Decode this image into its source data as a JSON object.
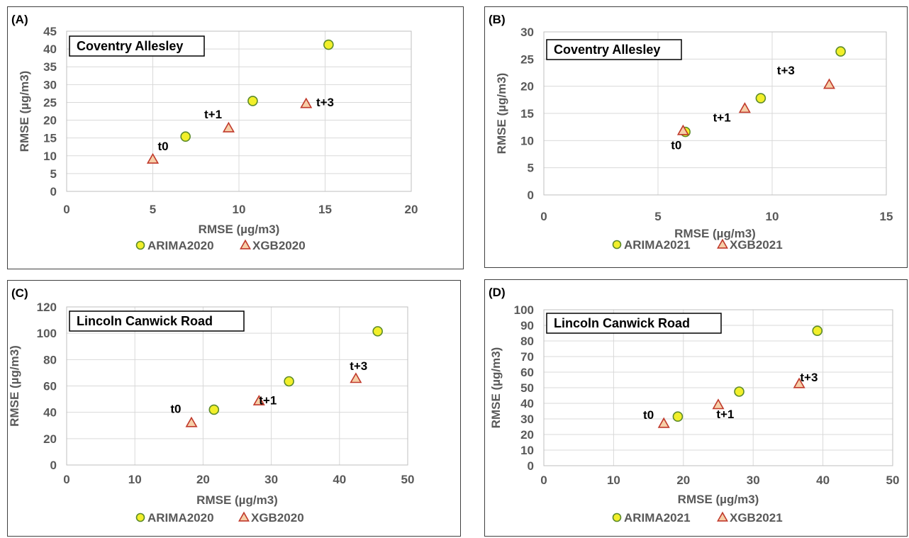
{
  "colors": {
    "arima_fill": "#f2ef2a",
    "arima_stroke": "#5b8a2a",
    "xgb_fill": "#f6cfa8",
    "xgb_stroke": "#c0392b",
    "grid": "#d9d9d9",
    "text": "#595959"
  },
  "chart_data": [
    {
      "type": "scatter",
      "panel_label": "(A)",
      "station": "Coventry Allesley",
      "xlabel": "RMSE (µg/m3)",
      "ylabel": "RMSE (µg/m3)",
      "xlim": [
        0,
        20
      ],
      "ylim": [
        0,
        45
      ],
      "xticks": [
        0,
        5,
        10,
        15,
        20
      ],
      "yticks": [
        0,
        5,
        10,
        15,
        20,
        25,
        30,
        35,
        40,
        45
      ],
      "grid": true,
      "legend_position": "bottom",
      "series": [
        {
          "name": "ARIMA2020",
          "marker": "circle",
          "points": [
            [
              6.9,
              15.4
            ],
            [
              10.8,
              25.4
            ],
            [
              15.2,
              41.2
            ]
          ]
        },
        {
          "name": "XGB2020",
          "marker": "triangle",
          "points": [
            [
              5.0,
              9.0
            ],
            [
              9.4,
              17.8
            ],
            [
              13.9,
              24.6
            ]
          ]
        }
      ],
      "annotations": [
        {
          "text": "t0",
          "x": 5.6,
          "y": 11.5
        },
        {
          "text": "t+1",
          "x": 8.5,
          "y": 20.5
        },
        {
          "text": "t+3",
          "x": 15.0,
          "y": 23.9
        }
      ]
    },
    {
      "type": "scatter",
      "panel_label": "(B)",
      "station": "Coventry Allesley",
      "xlabel": "RMSE (µg/m3)",
      "ylabel": "RMSE (µg/m3)",
      "xlim": [
        0,
        15
      ],
      "ylim": [
        0,
        30
      ],
      "xticks": [
        0,
        5,
        10,
        15
      ],
      "yticks": [
        0,
        5,
        10,
        15,
        20,
        25,
        30
      ],
      "grid": true,
      "legend_position": "bottom",
      "series": [
        {
          "name": "ARIMA2021",
          "marker": "circle",
          "points": [
            [
              6.2,
              11.6
            ],
            [
              9.5,
              17.8
            ],
            [
              13.0,
              26.4
            ]
          ]
        },
        {
          "name": "XGB2021",
          "marker": "triangle",
          "points": [
            [
              6.1,
              11.8
            ],
            [
              8.8,
              15.9
            ],
            [
              12.5,
              20.3
            ]
          ]
        }
      ],
      "annotations": [
        {
          "text": "t0",
          "x": 5.8,
          "y": 8.4
        },
        {
          "text": "t+1",
          "x": 7.8,
          "y": 13.5
        },
        {
          "text": "t+3",
          "x": 10.6,
          "y": 22.2
        }
      ]
    },
    {
      "type": "scatter",
      "panel_label": "(C)",
      "station": "Lincoln Canwick Road",
      "xlabel": "RMSE (µg/m3)",
      "ylabel": "RMSE (µg/m3)",
      "xlim": [
        0,
        50
      ],
      "ylim": [
        0,
        120
      ],
      "xticks": [
        0,
        10,
        20,
        30,
        40,
        50
      ],
      "yticks": [
        0,
        20,
        40,
        60,
        80,
        100,
        120
      ],
      "grid": true,
      "legend_position": "bottom",
      "series": [
        {
          "name": "ARIMA2020",
          "marker": "circle",
          "points": [
            [
              21.6,
              42.0
            ],
            [
              32.6,
              63.5
            ],
            [
              45.6,
              101.5
            ]
          ]
        },
        {
          "name": "XGB2020",
          "marker": "triangle",
          "points": [
            [
              18.3,
              32.0
            ],
            [
              28.2,
              48.5
            ],
            [
              42.4,
              65.5
            ]
          ]
        }
      ],
      "annotations": [
        {
          "text": "t0",
          "x": 16.0,
          "y": 39.5
        },
        {
          "text": "t+1",
          "x": 29.5,
          "y": 46.0
        },
        {
          "text": "t+3",
          "x": 42.8,
          "y": 72.0
        }
      ]
    },
    {
      "type": "scatter",
      "panel_label": "(D)",
      "station": "Lincoln Canwick Road",
      "xlabel": "RMSE (µg/m3)",
      "ylabel": "RMSE (µg/m3)",
      "xlim": [
        0,
        50
      ],
      "ylim": [
        0,
        100
      ],
      "xticks": [
        0,
        10,
        20,
        30,
        40,
        50
      ],
      "yticks": [
        0,
        10,
        20,
        30,
        40,
        50,
        60,
        70,
        80,
        90,
        100
      ],
      "grid": true,
      "legend_position": "bottom",
      "series": [
        {
          "name": "ARIMA2021",
          "marker": "circle",
          "points": [
            [
              19.2,
              31.5
            ],
            [
              28.0,
              47.5
            ],
            [
              39.2,
              86.5
            ]
          ]
        },
        {
          "name": "XGB2021",
          "marker": "triangle",
          "points": [
            [
              17.2,
              27.0
            ],
            [
              25.0,
              39.0
            ],
            [
              36.6,
              52.5
            ]
          ]
        }
      ],
      "annotations": [
        {
          "text": "t0",
          "x": 15.0,
          "y": 30.0
        },
        {
          "text": "t+1",
          "x": 26.0,
          "y": 30.5
        },
        {
          "text": "t+3",
          "x": 38.0,
          "y": 54.0
        }
      ]
    }
  ]
}
